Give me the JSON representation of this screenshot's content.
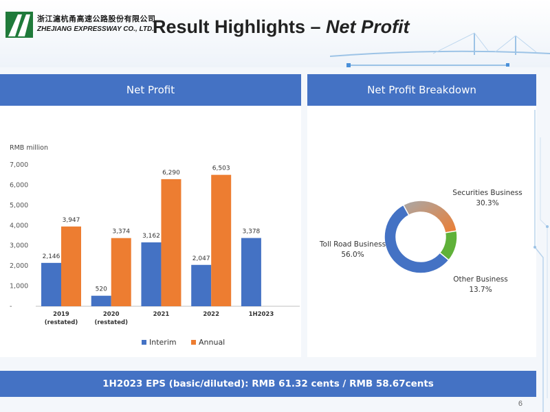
{
  "header": {
    "logo_cn": "浙江滬杭甬高速公路股份有限公司",
    "logo_en": "ZHEJIANG EXPRESSWAY CO., LTD.",
    "title_prefix": "Result Highlights –",
    "title_emphasis": "Net Profit"
  },
  "left_panel": {
    "title": "Net Profit"
  },
  "right_panel": {
    "title": "Net Profit Breakdown"
  },
  "eps_text": "1H2023 EPS (basic/diluted): RMB 61.32 cents / RMB 58.67cents",
  "page_number": "6",
  "colors": {
    "interim": "#4472c4",
    "annual": "#ed7d31",
    "panel_header": "#4472c4"
  },
  "chart_data": [
    {
      "type": "bar",
      "ylabel": "RMB million",
      "ylim": [
        0,
        7000
      ],
      "yticks": [
        "-",
        "1,000",
        "2,000",
        "3,000",
        "4,000",
        "5,000",
        "6,000",
        "7,000"
      ],
      "categories": [
        [
          "2019",
          "(restated)"
        ],
        [
          "2020",
          "(restated)"
        ],
        [
          "2021"
        ],
        [
          "2022"
        ],
        [
          "1H2023"
        ]
      ],
      "series": [
        {
          "name": "Interim",
          "values": [
            2146,
            520,
            3162,
            2047,
            3378
          ],
          "labels": [
            "2,146",
            "520",
            "3,162",
            "2,047",
            "3,378"
          ]
        },
        {
          "name": "Annual",
          "values": [
            3947,
            3374,
            6290,
            6503,
            null
          ],
          "labels": [
            "3,947",
            "3,374",
            "6,290",
            "6,503",
            ""
          ]
        }
      ],
      "legend": "bottom",
      "grid": false
    },
    {
      "type": "pie",
      "donut": true,
      "slices": [
        {
          "label": "Securities Business",
          "value": 30.3,
          "display": "30.3%",
          "color": "#c77b4a"
        },
        {
          "label": "Other Business",
          "value": 13.7,
          "display": "13.7%",
          "color": "#5fb139"
        },
        {
          "label": "Toll Road Business",
          "value": 56.0,
          "display": "56.0%",
          "color": "#4472c4"
        }
      ]
    }
  ]
}
